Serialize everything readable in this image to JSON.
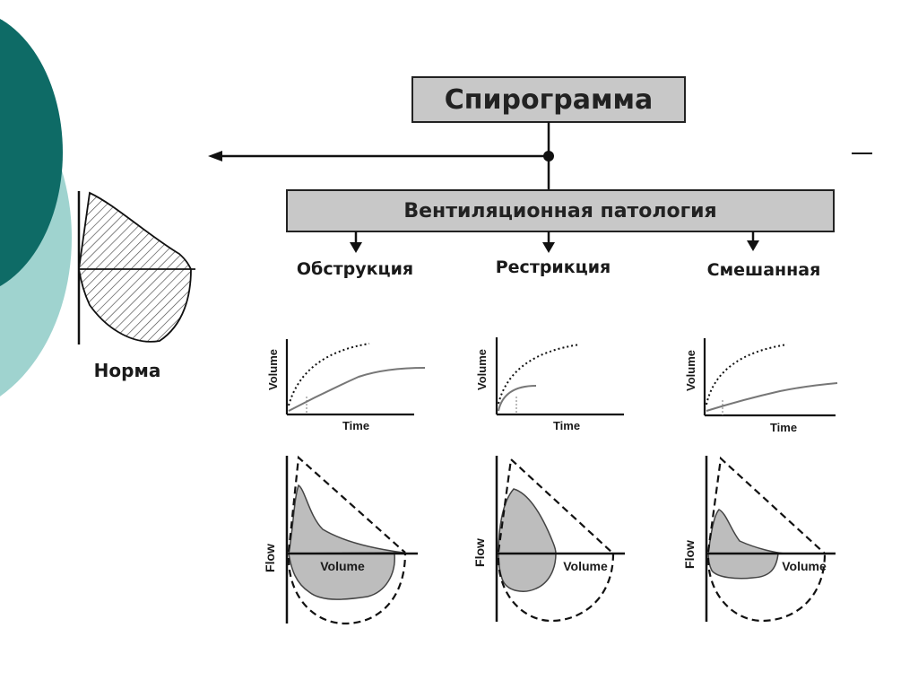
{
  "diagram": {
    "top_box_label": "Спирограмма",
    "second_box_label": "Вентиляционная патология",
    "norm_label": "Норма",
    "categories": [
      {
        "key": "obstruction",
        "label": "Обструкция"
      },
      {
        "key": "restriction",
        "label": "Рестрикция"
      },
      {
        "key": "mixed",
        "label": "Смешанная"
      }
    ],
    "time_axis": {
      "x_label": "Time",
      "y_label": "Volume"
    },
    "flow_axis": {
      "x_label": "Volume",
      "y_label": "Flow"
    }
  },
  "colors": {
    "box_fill": "#c8c8c8",
    "loop_fill": "#bdbdbd",
    "teal_dark": "#0e6b66",
    "teal_light": "#9fd3cf"
  }
}
